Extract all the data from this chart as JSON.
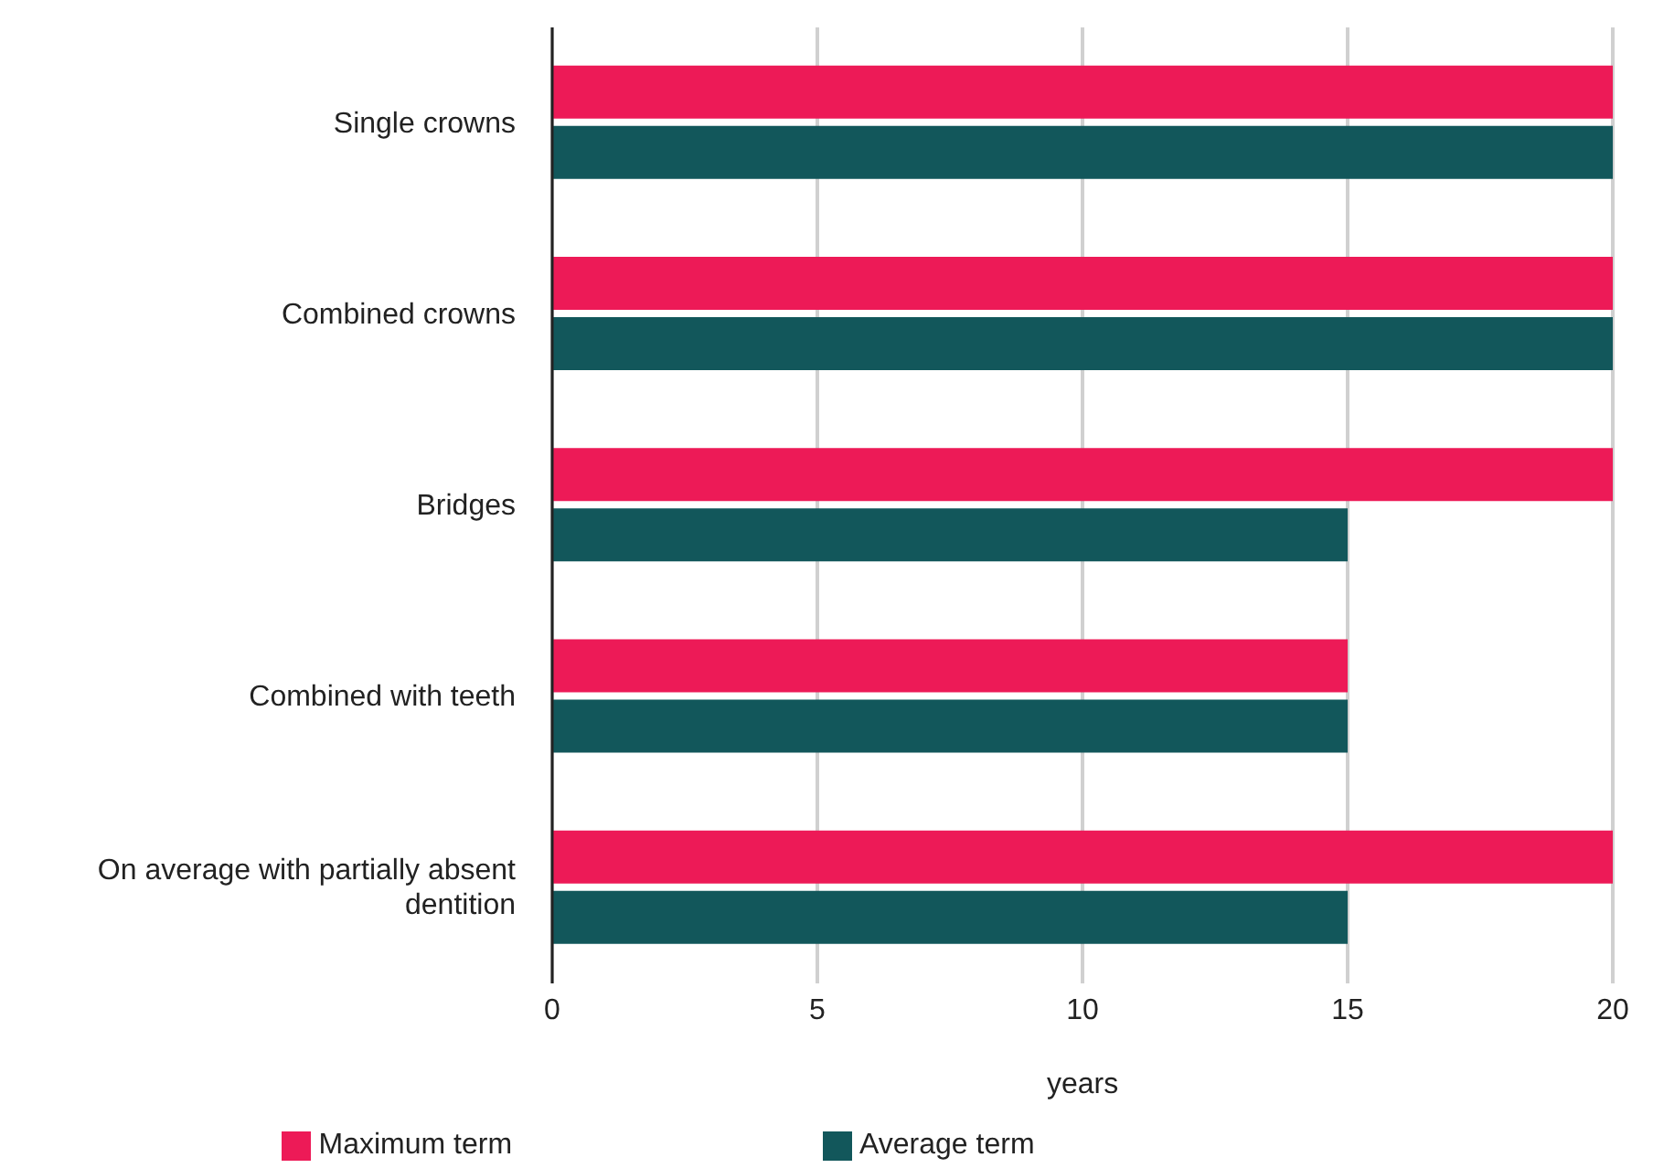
{
  "chart_data": {
    "type": "bar",
    "orientation": "horizontal",
    "xlabel": "years",
    "categories": [
      "Single crowns",
      "Combined crowns",
      "Bridges",
      "Combined with teeth",
      "On average with partially absent dentition"
    ],
    "series": [
      {
        "name": "Maximum term",
        "color": "#ed1a57",
        "values": [
          20,
          20,
          20,
          15,
          20
        ]
      },
      {
        "name": "Average term",
        "color": "#12575b",
        "values": [
          20,
          20,
          15,
          15,
          15
        ]
      }
    ],
    "xlim": [
      0,
      20
    ],
    "xticks": [
      0,
      5,
      10,
      15,
      20
    ],
    "grid": "x",
    "legend": "bottom"
  }
}
